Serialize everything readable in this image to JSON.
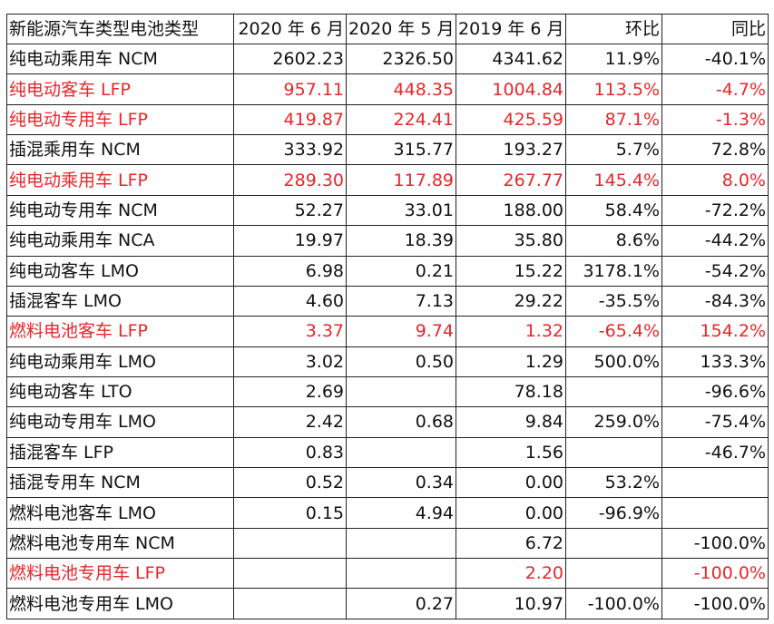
{
  "table": {
    "headers": [
      "新能源汽车类型电池类型",
      "2020 年 6 月",
      "2020 年 5 月",
      "2019 年 6 月",
      "环比",
      "同比"
    ],
    "rows": [
      {
        "type": "纯电动乘用车 NCM",
        "jun2020": "2602.23",
        "may2020": "2326.50",
        "jun2019": "4341.62",
        "mom": "11.9%",
        "yoy": "-40.1%",
        "highlight": false
      },
      {
        "type": "纯电动客车 LFP",
        "jun2020": "957.11",
        "may2020": "448.35",
        "jun2019": "1004.84",
        "mom": "113.5%",
        "yoy": "-4.7%",
        "highlight": true
      },
      {
        "type": "纯电动专用车 LFP",
        "jun2020": "419.87",
        "may2020": "224.41",
        "jun2019": "425.59",
        "mom": "87.1%",
        "yoy": "-1.3%",
        "highlight": true
      },
      {
        "type": "插混乘用车 NCM",
        "jun2020": "333.92",
        "may2020": "315.77",
        "jun2019": "193.27",
        "mom": "5.7%",
        "yoy": "72.8%",
        "highlight": false
      },
      {
        "type": "纯电动乘用车 LFP",
        "jun2020": "289.30",
        "may2020": "117.89",
        "jun2019": "267.77",
        "mom": "145.4%",
        "yoy": "8.0%",
        "highlight": true
      },
      {
        "type": "纯电动专用车 NCM",
        "jun2020": "52.27",
        "may2020": "33.01",
        "jun2019": "188.00",
        "mom": "58.4%",
        "yoy": "-72.2%",
        "highlight": false
      },
      {
        "type": "纯电动乘用车 NCA",
        "jun2020": "19.97",
        "may2020": "18.39",
        "jun2019": "35.80",
        "mom": "8.6%",
        "yoy": "-44.2%",
        "highlight": false
      },
      {
        "type": "纯电动客车 LMO",
        "jun2020": "6.98",
        "may2020": "0.21",
        "jun2019": "15.22",
        "mom": "3178.1%",
        "yoy": "-54.2%",
        "highlight": false
      },
      {
        "type": "插混客车 LMO",
        "jun2020": "4.60",
        "may2020": "7.13",
        "jun2019": "29.22",
        "mom": "-35.5%",
        "yoy": "-84.3%",
        "highlight": false
      },
      {
        "type": "燃料电池客车 LFP",
        "jun2020": "3.37",
        "may2020": "9.74",
        "jun2019": "1.32",
        "mom": "-65.4%",
        "yoy": "154.2%",
        "highlight": true
      },
      {
        "type": "纯电动乘用车 LMO",
        "jun2020": "3.02",
        "may2020": "0.50",
        "jun2019": "1.29",
        "mom": "500.0%",
        "yoy": "133.3%",
        "highlight": false
      },
      {
        "type": "纯电动客车 LTO",
        "jun2020": "2.69",
        "may2020": "",
        "jun2019": "78.18",
        "mom": "",
        "yoy": "-96.6%",
        "highlight": false
      },
      {
        "type": "纯电动专用车 LMO",
        "jun2020": "2.42",
        "may2020": "0.68",
        "jun2019": "9.84",
        "mom": "259.0%",
        "yoy": "-75.4%",
        "highlight": false
      },
      {
        "type": "插混客车 LFP",
        "jun2020": "0.83",
        "may2020": "",
        "jun2019": "1.56",
        "mom": "",
        "yoy": "-46.7%",
        "highlight": false
      },
      {
        "type": "插混专用车 NCM",
        "jun2020": "0.52",
        "may2020": "0.34",
        "jun2019": "0.00",
        "mom": "53.2%",
        "yoy": "",
        "highlight": false
      },
      {
        "type": "燃料电池客车 LMO",
        "jun2020": "0.15",
        "may2020": "4.94",
        "jun2019": "0.00",
        "mom": "-96.9%",
        "yoy": "",
        "highlight": false
      },
      {
        "type": "燃料电池专用车 NCM",
        "jun2020": "",
        "may2020": "",
        "jun2019": "6.72",
        "mom": "",
        "yoy": "-100.0%",
        "highlight": false
      },
      {
        "type": "燃料电池专用车 LFP",
        "jun2020": "",
        "may2020": "",
        "jun2019": "2.20",
        "mom": "",
        "yoy": "-100.0%",
        "highlight": true
      },
      {
        "type": "燃料电池专用车 LMO",
        "jun2020": "",
        "may2020": "0.27",
        "jun2019": "10.97",
        "mom": "-100.0%",
        "yoy": "-100.0%",
        "highlight": false
      }
    ]
  },
  "colors": {
    "text": "#111111",
    "highlight_text": "#e8262b",
    "grid": "#222222",
    "background": "#ffffff"
  }
}
